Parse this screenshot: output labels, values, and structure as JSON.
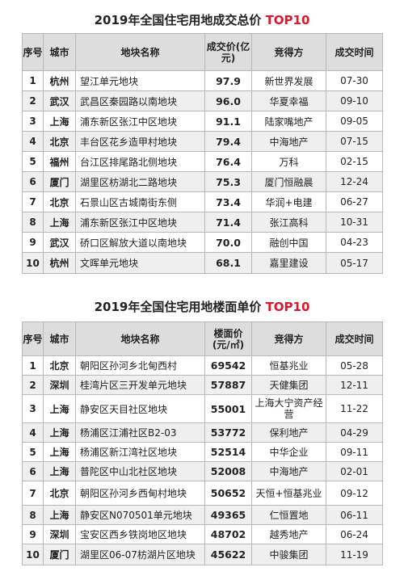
{
  "table1": {
    "title_main": "2019年全国住宅用地成交总价",
    "title_accent": "TOP10",
    "headers": {
      "rank": "序号",
      "city": "城市",
      "name": "地块名称",
      "price": "成交价(亿元)",
      "buyer": "竞得方",
      "date": "成交时间"
    },
    "rows": [
      {
        "rank": "1",
        "city": "杭州",
        "name": "望江单元地块",
        "price": "97.9",
        "buyer": "新世界发展",
        "date": "07-30"
      },
      {
        "rank": "2",
        "city": "武汉",
        "name": "武昌区秦园路以南地块",
        "price": "96.0",
        "buyer": "华夏幸福",
        "date": "09-10"
      },
      {
        "rank": "3",
        "city": "上海",
        "name": "浦东新区张江中区地块",
        "price": "91.1",
        "buyer": "陆家嘴地产",
        "date": "09-05"
      },
      {
        "rank": "4",
        "city": "北京",
        "name": "丰台区花乡造甲村地块",
        "price": "79.4",
        "buyer": "中海地产",
        "date": "07-15"
      },
      {
        "rank": "5",
        "city": "福州",
        "name": "台江区排尾路北侧地块",
        "price": "76.4",
        "buyer": "万科",
        "date": "02-15"
      },
      {
        "rank": "6",
        "city": "厦门",
        "name": "湖里区枋湖北二路地块",
        "price": "75.3",
        "buyer": "厦门恒融晨",
        "date": "12-24"
      },
      {
        "rank": "7",
        "city": "北京",
        "name": "石景山区古城南街东侧",
        "price": "73.4",
        "buyer": "华润+电建",
        "date": "06-27"
      },
      {
        "rank": "8",
        "city": "上海",
        "name": "浦东新区张江中区地块",
        "price": "71.4",
        "buyer": "张江高科",
        "date": "10-31"
      },
      {
        "rank": "9",
        "city": "武汉",
        "name": "硚口区解放大道以南地块",
        "price": "70.0",
        "buyer": "融创中国",
        "date": "04-23"
      },
      {
        "rank": "10",
        "city": "杭州",
        "name": "文晖单元地块",
        "price": "68.1",
        "buyer": "嘉里建设",
        "date": "05-17"
      }
    ]
  },
  "table2": {
    "title_main": "2019年全国住宅用地楼面单价",
    "title_accent": "TOP10",
    "headers": {
      "rank": "序号",
      "city": "城市",
      "name": "地块名称",
      "price": "楼面价(元/㎡)",
      "buyer": "竞得方",
      "date": "成交时间"
    },
    "rows": [
      {
        "rank": "1",
        "city": "北京",
        "name": "朝阳区孙河乡北甸西村",
        "price": "69542",
        "buyer": "恒基兆业",
        "date": "05-28"
      },
      {
        "rank": "2",
        "city": "深圳",
        "name": "桂湾片区三开发单元地块",
        "price": "57887",
        "buyer": "天健集团",
        "date": "12-11"
      },
      {
        "rank": "3",
        "city": "上海",
        "name": "静安区天目社区地块",
        "price": "55001",
        "buyer": "上海大宁资产经营",
        "date": "11-22"
      },
      {
        "rank": "4",
        "city": "上海",
        "name": "杨浦区江浦社区B2-03",
        "price": "53772",
        "buyer": "保利地产",
        "date": "04-29"
      },
      {
        "rank": "5",
        "city": "上海",
        "name": "杨浦区新江湾社区地块",
        "price": "52514",
        "buyer": "中华企业",
        "date": "09-11"
      },
      {
        "rank": "6",
        "city": "上海",
        "name": "普陀区中山北社区地块",
        "price": "52008",
        "buyer": "中海地产",
        "date": "02-01"
      },
      {
        "rank": "7",
        "city": "北京",
        "name": "朝阳区孙河乡西甸村地块",
        "price": "50652",
        "buyer": "天恒+恒基兆业",
        "date": "09-12"
      },
      {
        "rank": "8",
        "city": "上海",
        "name": "静安区N070501单元地块",
        "price": "49365",
        "buyer": "仁恒置地",
        "date": "06-11"
      },
      {
        "rank": "9",
        "city": "深圳",
        "name": "宝安区西乡铁岗地区地块",
        "price": "48702",
        "buyer": "越秀地产",
        "date": "06-24"
      },
      {
        "rank": "10",
        "city": "厦门",
        "name": "湖里区06-07枋湖片区地块",
        "price": "45622",
        "buyer": "中骏集团",
        "date": "11-19"
      }
    ]
  }
}
